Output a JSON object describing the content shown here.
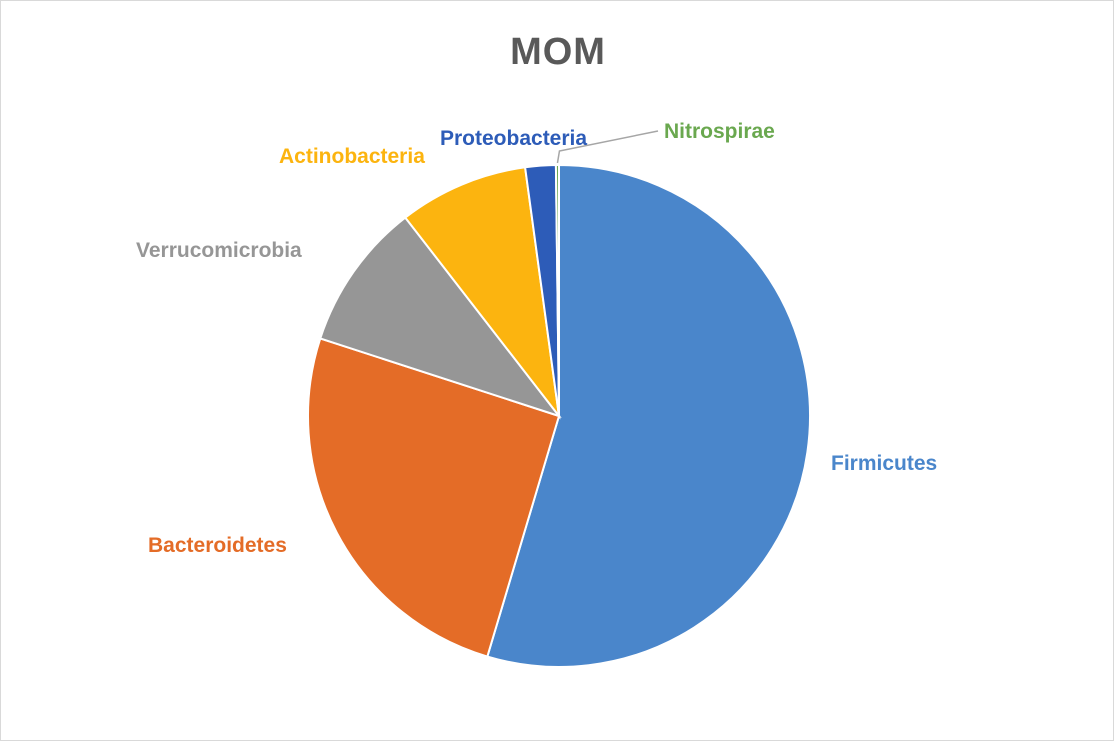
{
  "chart_data": {
    "type": "pie",
    "title": "MOM",
    "series": [
      {
        "values": [
          55.7,
          25.9,
          9.7,
          8.5,
          2.0,
          0.2
        ],
        "labels": [
          "Firmicutes",
          "Bacteroidetes",
          "Verrucomicrobia",
          "Actinobacteria",
          "Proteobacteria",
          "Nitrospirae"
        ],
        "colors": [
          "#4a86cb",
          "#e46c27",
          "#969696",
          "#fcb40f",
          "#2d5cb8",
          "#6aa84f"
        ]
      }
    ],
    "legend": "none",
    "data_labels": "category names beside slices, colored to match slices"
  }
}
